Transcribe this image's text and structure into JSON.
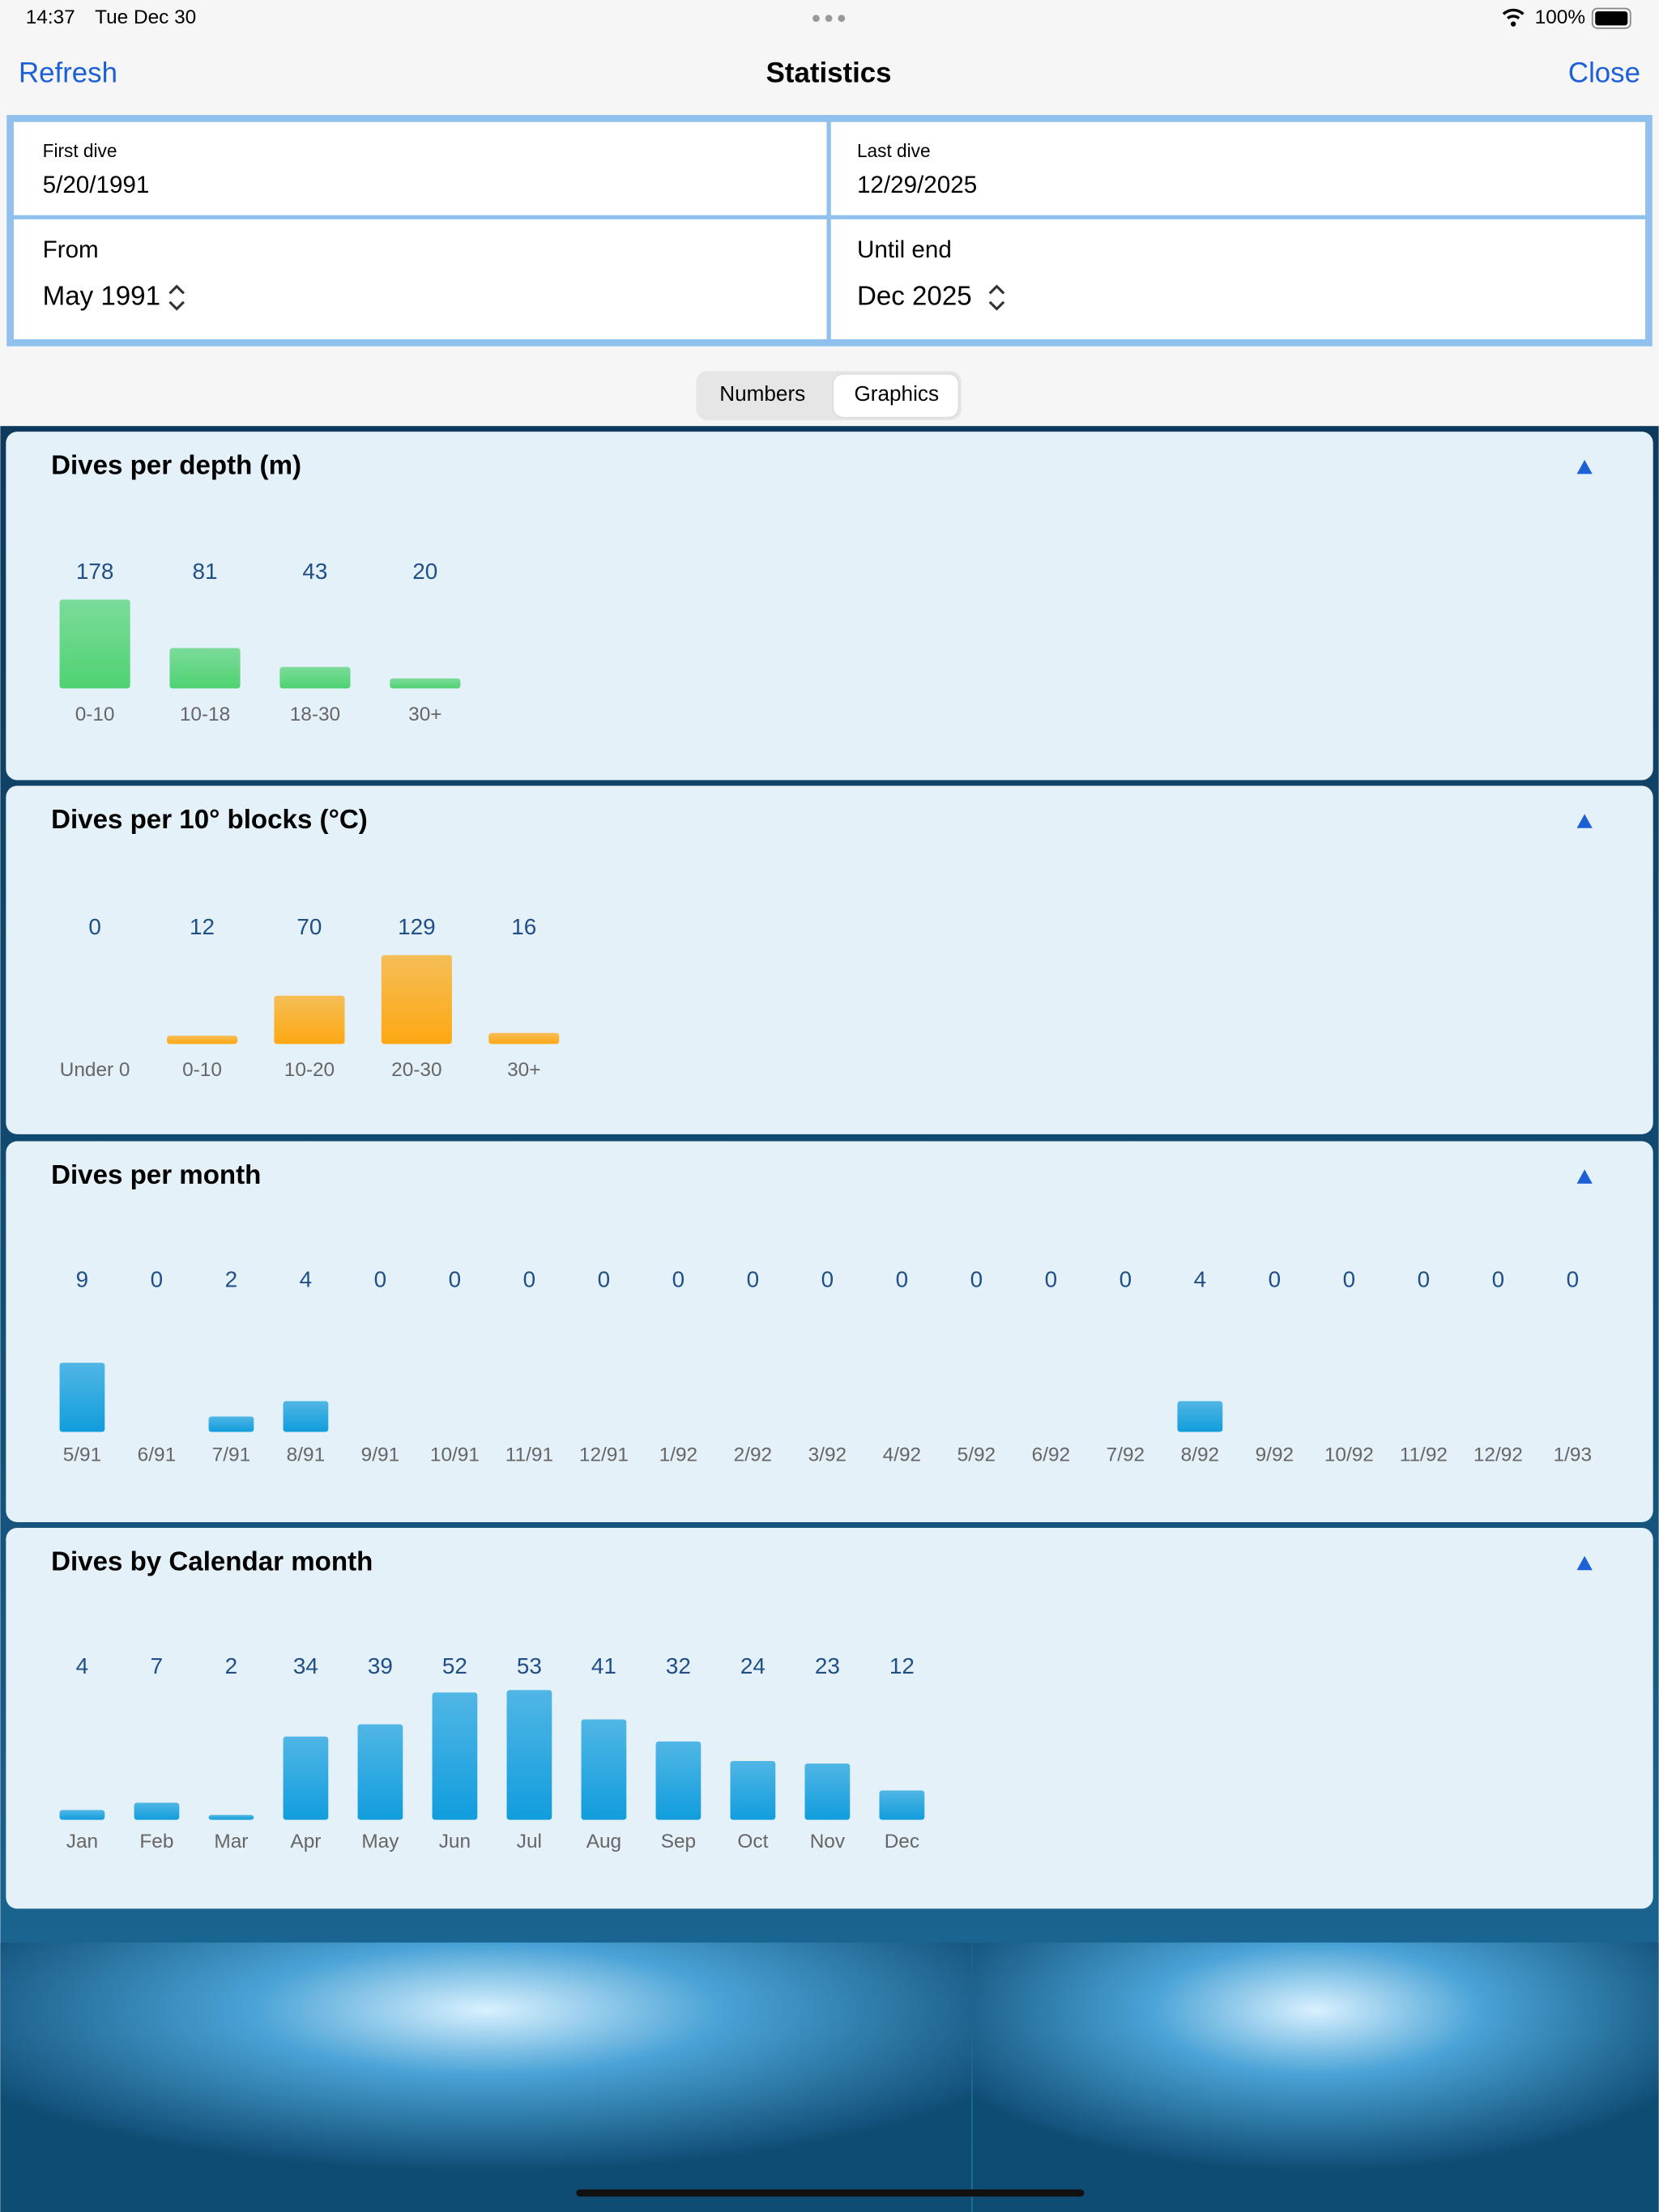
{
  "status_bar": {
    "time": "14:37",
    "date": "Tue Dec 30",
    "battery": "100%"
  },
  "nav": {
    "left": "Refresh",
    "title": "Statistics",
    "right": "Close"
  },
  "form": {
    "first_dive_label": "First dive",
    "first_dive": "5/20/1991",
    "last_dive_label": "Last dive",
    "last_dive": "12/29/2025",
    "from_label": "From",
    "from": "May 1991",
    "until_label": "Until end",
    "until": "Dec 2025"
  },
  "segmented": {
    "options": [
      "Numbers",
      "Graphics"
    ],
    "selected": "Graphics"
  },
  "charts": [
    {
      "type": "bar",
      "title": "Dives per depth (m)",
      "categories": [
        "0-10",
        "10-18",
        "18-30",
        "30+"
      ],
      "values": [
        178,
        81,
        43,
        20
      ],
      "color": "#4fd272"
    },
    {
      "type": "bar",
      "title": "Dives per 10° blocks (°C)",
      "categories": [
        "Under 0",
        "0-10",
        "10-20",
        "20-30",
        "30+"
      ],
      "values": [
        0,
        12,
        70,
        129,
        16
      ],
      "color": "#fda812"
    },
    {
      "type": "bar",
      "title": "Dives per month",
      "categories": [
        "5/91",
        "6/91",
        "7/91",
        "8/91",
        "9/91",
        "10/91",
        "11/91",
        "12/91",
        "1/92",
        "2/92",
        "3/92",
        "4/92",
        "5/92",
        "6/92",
        "7/92",
        "8/92",
        "9/92",
        "10/92",
        "11/92",
        "12/92",
        "1/93"
      ],
      "values": [
        9,
        0,
        2,
        4,
        0,
        0,
        0,
        0,
        0,
        0,
        0,
        0,
        0,
        0,
        0,
        4,
        0,
        0,
        0,
        0,
        0
      ],
      "color": "#119ddd"
    },
    {
      "type": "bar",
      "title": "Dives by Calendar month",
      "categories": [
        "Jan",
        "Feb",
        "Mar",
        "Apr",
        "May",
        "Jun",
        "Jul",
        "Aug",
        "Sep",
        "Oct",
        "Nov",
        "Dec"
      ],
      "values": [
        4,
        7,
        2,
        34,
        39,
        52,
        53,
        41,
        32,
        24,
        23,
        12
      ],
      "color": "#119ddd"
    }
  ]
}
